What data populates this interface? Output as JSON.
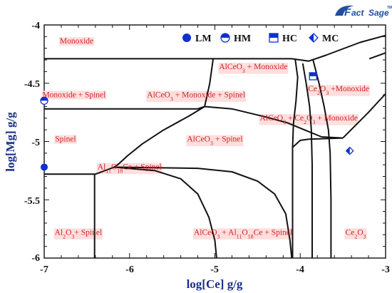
{
  "chart_data": {
    "type": "line",
    "xlabel": "log[Ce] g/g",
    "ylabel": "log[Mg] g/g",
    "xlim": [
      -7,
      -3
    ],
    "ylim": [
      -6,
      -4
    ],
    "x_ticks": [
      "-7",
      "-6",
      "-5",
      "-4",
      "-3"
    ],
    "y_ticks": [
      "-4",
      "-4.5",
      "-5",
      "-5.5",
      "-6"
    ],
    "grid": false,
    "logo": "FactSage",
    "legend": {
      "placement": "top-right",
      "items": [
        {
          "label": "LM",
          "marker": "filled-circle"
        },
        {
          "label": "HM",
          "marker": "half-filled-circle"
        },
        {
          "label": "HC",
          "marker": "half-filled-square"
        },
        {
          "label": "MC",
          "marker": "half-filled-diamond"
        }
      ]
    },
    "regions": [
      {
        "label": "Monoxide",
        "sub": null,
        "x": -6.62,
        "y": -4.16
      },
      {
        "label": "Monoxide + Spinel",
        "sub": null,
        "x": -6.65,
        "y": -4.62
      },
      {
        "label": "Spinel",
        "sub": null,
        "x": -6.75,
        "y": -5.0
      },
      {
        "label": "AlCeO3 + Monoxide",
        "sub": "3",
        "x": -4.55,
        "y": -4.38
      },
      {
        "label": "Ce2O3 +Monoxide",
        "sub": "2,3",
        "x": -3.55,
        "y": -4.57
      },
      {
        "label": "AlCeO3 + Monoxide + Spinel",
        "sub": "3",
        "x": -5.22,
        "y": -4.62
      },
      {
        "label": "AlCeO3 + Ce2O3 + Monoxide",
        "sub": "3,2,3",
        "x": -3.9,
        "y": -4.82
      },
      {
        "label": "AlCeO3 + Spinel",
        "sub": "3",
        "x": -5.0,
        "y": -5.0
      },
      {
        "label": "Al11O18Ce + Spinel",
        "sub": "11,18",
        "x": -6.0,
        "y": -5.24
      },
      {
        "label": "Al2O3+ Spinel",
        "sub": "2,3",
        "x": -6.6,
        "y": -5.8
      },
      {
        "label": "AlCeO3 + Al11O18Ce + Spinel",
        "sub": "3,11,18",
        "x": -4.67,
        "y": -5.8
      },
      {
        "label": "Ce2O3",
        "sub": "2,3",
        "x": -3.35,
        "y": -5.8
      }
    ],
    "series": [
      {
        "points": [
          [
            -7,
            -4.29
          ],
          [
            -4.1,
            -4.29
          ],
          [
            -3.9,
            -4.31
          ],
          [
            -3.7,
            -4.26
          ],
          [
            -3.3,
            -4.15
          ],
          [
            -3.0,
            -4.09
          ]
        ]
      },
      {
        "points": [
          [
            -7,
            -4.72
          ],
          [
            -5.2,
            -4.72
          ],
          [
            -5.12,
            -4.7
          ]
        ]
      },
      {
        "points": [
          [
            -5.02,
            -4.29
          ],
          [
            -5.06,
            -4.5
          ],
          [
            -5.12,
            -4.7
          ]
        ]
      },
      {
        "points": [
          [
            -5.12,
            -4.7
          ],
          [
            -4.8,
            -4.72
          ],
          [
            -4.4,
            -4.79
          ],
          [
            -4.15,
            -4.84
          ],
          [
            -3.95,
            -4.9
          ],
          [
            -3.75,
            -4.96
          ],
          [
            -3.5,
            -4.97
          ]
        ]
      },
      {
        "points": [
          [
            -5.12,
            -4.7
          ],
          [
            -5.3,
            -4.78
          ],
          [
            -5.6,
            -4.9
          ],
          [
            -5.85,
            -5.02
          ],
          [
            -6.02,
            -5.12
          ],
          [
            -6.14,
            -5.2
          ],
          [
            -6.18,
            -5.22
          ]
        ]
      },
      {
        "points": [
          [
            -7,
            -5.28
          ],
          [
            -6.4,
            -5.28
          ],
          [
            -6.18,
            -5.22
          ]
        ]
      },
      {
        "points": [
          [
            -6.41,
            -5.28
          ],
          [
            -6.41,
            -6.0
          ]
        ]
      },
      {
        "points": [
          [
            -6.18,
            -5.22
          ],
          [
            -5.2,
            -5.23
          ],
          [
            -4.8,
            -5.26
          ],
          [
            -4.5,
            -5.34
          ],
          [
            -4.3,
            -5.45
          ],
          [
            -4.17,
            -5.62
          ],
          [
            -4.12,
            -5.85
          ],
          [
            -4.1,
            -6.0
          ]
        ]
      },
      {
        "points": [
          [
            -6.18,
            -5.22
          ],
          [
            -5.7,
            -5.25
          ],
          [
            -5.4,
            -5.32
          ],
          [
            -5.2,
            -5.45
          ],
          [
            -5.07,
            -5.65
          ],
          [
            -5.0,
            -5.85
          ],
          [
            -4.98,
            -6.0
          ]
        ]
      },
      {
        "points": [
          [
            -4.06,
            -4.29
          ],
          [
            -4.03,
            -4.45
          ],
          [
            -4.05,
            -4.65
          ],
          [
            -4.08,
            -4.85
          ],
          [
            -4.09,
            -5.05
          ],
          [
            -4.09,
            -5.5
          ],
          [
            -4.09,
            -6.0
          ]
        ]
      },
      {
        "points": [
          [
            -3.97,
            -4.33
          ],
          [
            -3.93,
            -4.5
          ],
          [
            -3.89,
            -4.7
          ],
          [
            -3.87,
            -4.9
          ],
          [
            -3.86,
            -5.2
          ],
          [
            -3.86,
            -6.0
          ]
        ]
      },
      {
        "points": [
          [
            -3.85,
            -4.3
          ],
          [
            -3.78,
            -4.5
          ],
          [
            -3.72,
            -4.7
          ],
          [
            -3.67,
            -4.9
          ],
          [
            -3.65,
            -5.1
          ],
          [
            -3.64,
            -5.5
          ],
          [
            -3.64,
            -6.0
          ]
        ]
      },
      {
        "points": [
          [
            -3.5,
            -4.97
          ],
          [
            -3.2,
            -4.75
          ],
          [
            -3.0,
            -4.59
          ]
        ]
      },
      {
        "points": [
          [
            -4.09,
            -5.05
          ],
          [
            -4.0,
            -4.99
          ],
          [
            -3.9,
            -4.98
          ],
          [
            -3.5,
            -4.97
          ]
        ]
      },
      {
        "points": [
          [
            -3.19,
            -4.29
          ],
          [
            -3.0,
            -4.24
          ]
        ]
      }
    ],
    "markers": [
      {
        "type": "LM",
        "x": -7.0,
        "y": -5.22
      },
      {
        "type": "HM",
        "x": -7.0,
        "y": -4.65
      },
      {
        "type": "HC",
        "x": -3.85,
        "y": -4.44
      },
      {
        "type": "MC",
        "x": -3.42,
        "y": -5.08
      }
    ]
  }
}
